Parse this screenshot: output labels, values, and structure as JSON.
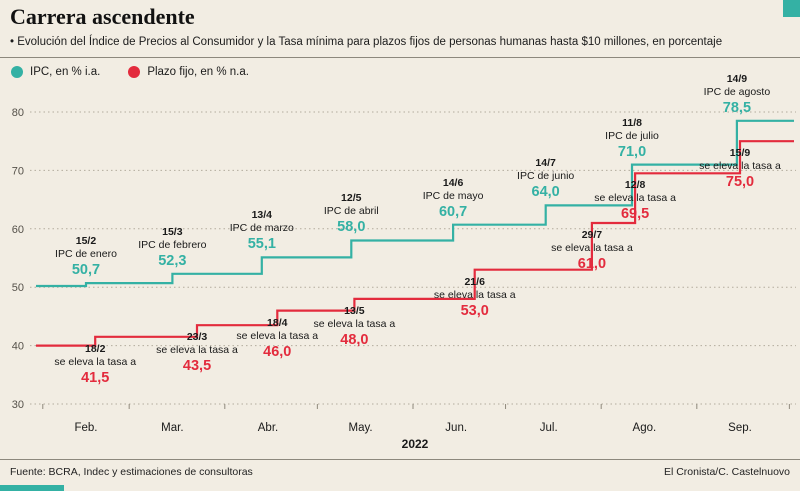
{
  "page": {
    "title": "Carrera ascendente",
    "subtitle": "• Evolución del Índice de Precios al Consumidor y la Tasa mínima para plazos fijos de personas humanas hasta $10 millones, en porcentaje",
    "footer_left": "Fuente: BCRA, Indec y estimaciones de consultoras",
    "footer_right": "El Cronista/C. Castelnuovo"
  },
  "colors": {
    "teal": "#34b1a4",
    "red": "#e32b3d",
    "background": "#f2ede3",
    "grid": "#b3ac9d",
    "axis_text": "#55514a",
    "text_dark": "#1a1a1a"
  },
  "legend": [
    {
      "label": "IPC, en % i.a.",
      "color_key": "teal"
    },
    {
      "label": "Plazo fijo, en % n.a.",
      "color_key": "red"
    }
  ],
  "chart_data": {
    "type": "line",
    "step": true,
    "title": "Carrera ascendente",
    "x_axis": {
      "months": [
        "Feb.",
        "Mar.",
        "Abr.",
        "May.",
        "Jun.",
        "Jul.",
        "Ago.",
        "Sep."
      ],
      "year": "2022"
    },
    "y_axis": {
      "ticks": [
        30,
        40,
        50,
        60,
        70,
        80
      ],
      "min": 30,
      "max": 80,
      "grid": "dotted"
    },
    "series": [
      {
        "name": "IPC, en % i.a.",
        "color_key": "teal",
        "label_position": "above",
        "start_value": 50.2,
        "points": [
          {
            "date": "15/2",
            "label": "IPC de enero",
            "value": 50.7,
            "value_display": "50,7"
          },
          {
            "date": "15/3",
            "label": "IPC de febrero",
            "value": 52.3,
            "value_display": "52,3"
          },
          {
            "date": "13/4",
            "label": "IPC de marzo",
            "value": 55.1,
            "value_display": "55,1"
          },
          {
            "date": "12/5",
            "label": "IPC de abril",
            "value": 58.0,
            "value_display": "58,0"
          },
          {
            "date": "14/6",
            "label": "IPC de mayo",
            "value": 60.7,
            "value_display": "60,7"
          },
          {
            "date": "14/7",
            "label": "IPC de junio",
            "value": 64.0,
            "value_display": "64,0"
          },
          {
            "date": "11/8",
            "label": "IPC de julio",
            "value": 71.0,
            "value_display": "71,0"
          },
          {
            "date": "14/9",
            "label": "IPC de agosto",
            "value": 78.5,
            "value_display": "78,5"
          }
        ]
      },
      {
        "name": "Plazo fijo, en % n.a.",
        "color_key": "red",
        "label_position": "below",
        "start_value": 40.0,
        "points": [
          {
            "date": "18/2",
            "label": "se eleva la tasa a",
            "value": 41.5,
            "value_display": "41,5"
          },
          {
            "date": "23/3",
            "label": "se eleva la tasa a",
            "value": 43.5,
            "value_display": "43,5"
          },
          {
            "date": "18/4",
            "label": "se eleva la tasa a",
            "value": 46.0,
            "value_display": "46,0"
          },
          {
            "date": "13/5",
            "label": "se eleva la tasa a",
            "value": 48.0,
            "value_display": "48,0"
          },
          {
            "date": "21/6",
            "label": "se eleva la tasa a",
            "value": 53.0,
            "value_display": "53,0"
          },
          {
            "date": "29/7",
            "label": "se eleva la tasa a",
            "value": 61.0,
            "value_display": "61,0"
          },
          {
            "date": "12/8",
            "label": "se eleva la tasa a",
            "value": 69.5,
            "value_display": "69,5"
          },
          {
            "date": "15/9",
            "label": "se eleva la tasa a",
            "value": 75.0,
            "value_display": "75,0"
          }
        ]
      }
    ]
  }
}
